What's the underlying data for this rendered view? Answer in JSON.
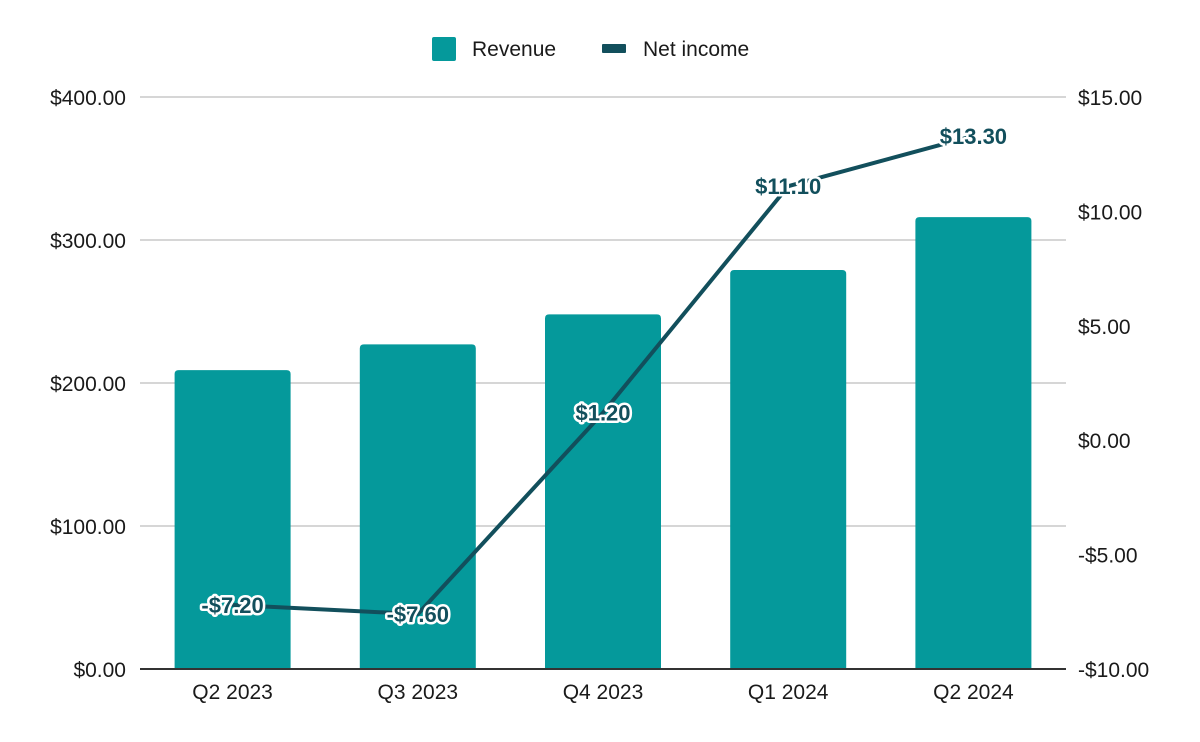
{
  "chart_data": {
    "type": "bar",
    "title": "",
    "xlabel": "",
    "categories": [
      "Q2 2023",
      "Q3 2023",
      "Q4 2023",
      "Q1 2024",
      "Q2 2024"
    ],
    "series": [
      {
        "name": "Revenue",
        "type": "bar",
        "axis": "left",
        "color": "#05999b",
        "values": [
          209,
          227,
          248,
          279,
          316
        ]
      },
      {
        "name": "Net income",
        "type": "line",
        "axis": "right",
        "color": "#124f5c",
        "values": [
          -7.2,
          -7.6,
          1.2,
          11.1,
          13.3
        ],
        "data_labels": [
          "-$7.20",
          "-$7.60",
          "$1.20",
          "$11.10",
          "$13.30"
        ]
      }
    ],
    "y_left": {
      "ylim": [
        0,
        400
      ],
      "ticks": [
        0,
        100,
        200,
        300,
        400
      ],
      "tick_labels": [
        "$0.00",
        "$100.00",
        "$200.00",
        "$300.00",
        "$400.00"
      ]
    },
    "y_right": {
      "ylim": [
        -10,
        15
      ],
      "ticks": [
        -10,
        -5,
        0,
        5,
        10,
        15
      ],
      "tick_labels": [
        "-$10.00",
        "-$5.00",
        "$0.00",
        "$5.00",
        "$10.00",
        "$15.00"
      ]
    },
    "grid": true,
    "legend_position": "top-center",
    "colors": {
      "gridline": "#c8c8c8",
      "axis": "#333333"
    }
  }
}
